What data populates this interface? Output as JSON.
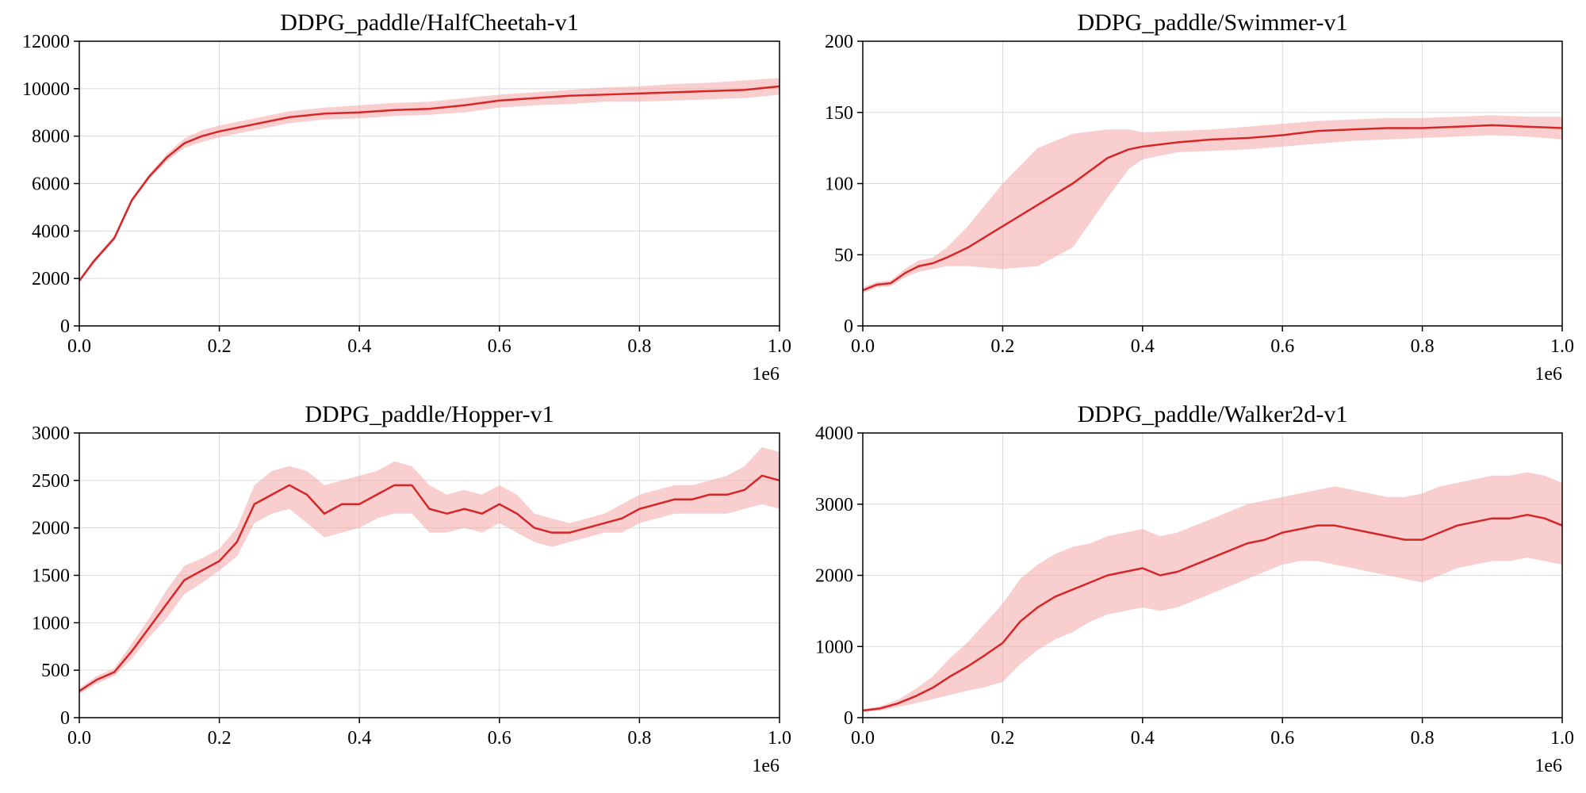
{
  "figure": {
    "colors": {
      "line": "#d62728",
      "band": "#f4a6a8",
      "grid": "#d9d9d9",
      "axis": "#000000"
    }
  },
  "chart_data": [
    {
      "type": "line",
      "title": "DDPG_paddle/HalfCheetah-v1",
      "xlim": [
        0,
        1000000
      ],
      "ylim": [
        0,
        12000
      ],
      "xticks": [
        0.0,
        0.2,
        0.4,
        0.6,
        0.8,
        1.0
      ],
      "xtick_labels": [
        "0.0",
        "0.2",
        "0.4",
        "0.6",
        "0.8",
        "1.0"
      ],
      "yticks": [
        0,
        2000,
        4000,
        6000,
        8000,
        10000,
        12000
      ],
      "ytick_labels": [
        "0",
        "2000",
        "4000",
        "6000",
        "8000",
        "10000",
        "12000"
      ],
      "x_offset_label": "1e6",
      "grid": true,
      "series": [
        {
          "x": [
            0,
            20000,
            50000,
            75000,
            100000,
            125000,
            150000,
            175000,
            200000,
            250000,
            300000,
            350000,
            400000,
            450000,
            500000,
            550000,
            600000,
            650000,
            700000,
            750000,
            800000,
            850000,
            900000,
            950000,
            1000000
          ],
          "mean": [
            1900,
            2700,
            3700,
            5300,
            6300,
            7100,
            7700,
            8000,
            8200,
            8500,
            8800,
            8950,
            9000,
            9100,
            9150,
            9300,
            9500,
            9600,
            9700,
            9750,
            9800,
            9850,
            9900,
            9950,
            10100
          ],
          "lower": [
            1850,
            2600,
            3600,
            5200,
            6200,
            6950,
            7500,
            7750,
            7950,
            8250,
            8550,
            8700,
            8750,
            8850,
            8900,
            9000,
            9200,
            9300,
            9350,
            9450,
            9450,
            9500,
            9550,
            9600,
            9750
          ],
          "upper": [
            1950,
            2800,
            3800,
            5400,
            6400,
            7250,
            7900,
            8250,
            8450,
            8750,
            9050,
            9200,
            9300,
            9400,
            9450,
            9600,
            9750,
            9850,
            9950,
            10050,
            10100,
            10200,
            10250,
            10350,
            10450
          ]
        }
      ]
    },
    {
      "type": "line",
      "title": "DDPG_paddle/Swimmer-v1",
      "xlim": [
        0,
        1000000
      ],
      "ylim": [
        0,
        200
      ],
      "xticks": [
        0.0,
        0.2,
        0.4,
        0.6,
        0.8,
        1.0
      ],
      "xtick_labels": [
        "0.0",
        "0.2",
        "0.4",
        "0.6",
        "0.8",
        "1.0"
      ],
      "yticks": [
        0,
        50,
        100,
        150,
        200
      ],
      "ytick_labels": [
        "0",
        "50",
        "100",
        "150",
        "200"
      ],
      "x_offset_label": "1e6",
      "grid": true,
      "series": [
        {
          "x": [
            0,
            20000,
            40000,
            60000,
            80000,
            100000,
            120000,
            150000,
            200000,
            250000,
            300000,
            350000,
            380000,
            400000,
            450000,
            500000,
            550000,
            600000,
            650000,
            700000,
            750000,
            800000,
            850000,
            900000,
            950000,
            1000000
          ],
          "mean": [
            25,
            29,
            30,
            37,
            42,
            44,
            48,
            55,
            70,
            85,
            100,
            118,
            124,
            126,
            129,
            131,
            132,
            134,
            137,
            138,
            139,
            139,
            140,
            141,
            140,
            139
          ],
          "lower": [
            23,
            27,
            28,
            34,
            38,
            40,
            42,
            42,
            40,
            42,
            55,
            90,
            110,
            117,
            122,
            123,
            124,
            126,
            128,
            130,
            131,
            132,
            133,
            134,
            133,
            131
          ],
          "upper": [
            27,
            31,
            32,
            40,
            46,
            48,
            55,
            70,
            100,
            125,
            135,
            138,
            138,
            136,
            137,
            138,
            140,
            142,
            144,
            145,
            146,
            146,
            147,
            148,
            147,
            147
          ]
        }
      ]
    },
    {
      "type": "line",
      "title": "DDPG_paddle/Hopper-v1",
      "xlim": [
        0,
        1000000
      ],
      "ylim": [
        0,
        3000
      ],
      "xticks": [
        0.0,
        0.2,
        0.4,
        0.6,
        0.8,
        1.0
      ],
      "xtick_labels": [
        "0.0",
        "0.2",
        "0.4",
        "0.6",
        "0.8",
        "1.0"
      ],
      "yticks": [
        0,
        500,
        1000,
        1500,
        2000,
        2500,
        3000
      ],
      "ytick_labels": [
        "0",
        "500",
        "1000",
        "1500",
        "2000",
        "2500",
        "3000"
      ],
      "x_offset_label": "1e6",
      "grid": true,
      "series": [
        {
          "x": [
            0,
            25000,
            50000,
            75000,
            100000,
            125000,
            150000,
            175000,
            200000,
            225000,
            250000,
            275000,
            300000,
            325000,
            350000,
            375000,
            400000,
            425000,
            450000,
            475000,
            500000,
            525000,
            550000,
            575000,
            600000,
            625000,
            650000,
            675000,
            700000,
            725000,
            750000,
            775000,
            800000,
            825000,
            850000,
            875000,
            900000,
            925000,
            950000,
            975000,
            1000000
          ],
          "mean": [
            280,
            400,
            480,
            700,
            950,
            1200,
            1450,
            1550,
            1650,
            1850,
            2250,
            2350,
            2450,
            2350,
            2150,
            2250,
            2250,
            2350,
            2450,
            2450,
            2200,
            2150,
            2200,
            2150,
            2250,
            2150,
            2000,
            1950,
            1950,
            2000,
            2050,
            2100,
            2200,
            2250,
            2300,
            2300,
            2350,
            2350,
            2400,
            2550,
            2500
          ],
          "lower": [
            250,
            360,
            440,
            620,
            850,
            1050,
            1300,
            1420,
            1550,
            1700,
            2050,
            2150,
            2200,
            2050,
            1900,
            1950,
            2000,
            2100,
            2150,
            2150,
            1950,
            1950,
            2000,
            1950,
            2050,
            1950,
            1850,
            1800,
            1850,
            1900,
            1950,
            1950,
            2050,
            2100,
            2150,
            2150,
            2150,
            2150,
            2200,
            2250,
            2200
          ],
          "upper": [
            310,
            440,
            520,
            780,
            1050,
            1350,
            1600,
            1680,
            1780,
            2000,
            2450,
            2600,
            2650,
            2600,
            2450,
            2500,
            2550,
            2600,
            2700,
            2650,
            2450,
            2350,
            2400,
            2350,
            2450,
            2350,
            2150,
            2100,
            2050,
            2100,
            2150,
            2250,
            2350,
            2400,
            2450,
            2450,
            2500,
            2550,
            2650,
            2850,
            2800
          ]
        }
      ]
    },
    {
      "type": "line",
      "title": "DDPG_paddle/Walker2d-v1",
      "xlim": [
        0,
        1000000
      ],
      "ylim": [
        0,
        4000
      ],
      "xticks": [
        0.0,
        0.2,
        0.4,
        0.6,
        0.8,
        1.0
      ],
      "xtick_labels": [
        "0.0",
        "0.2",
        "0.4",
        "0.6",
        "0.8",
        "1.0"
      ],
      "yticks": [
        0,
        1000,
        2000,
        3000,
        4000
      ],
      "ytick_labels": [
        "0",
        "1000",
        "2000",
        "3000",
        "4000"
      ],
      "x_offset_label": "1e6",
      "grid": true,
      "series": [
        {
          "x": [
            0,
            25000,
            50000,
            75000,
            100000,
            125000,
            150000,
            175000,
            200000,
            225000,
            250000,
            275000,
            300000,
            325000,
            350000,
            375000,
            400000,
            425000,
            450000,
            475000,
            500000,
            525000,
            550000,
            575000,
            600000,
            625000,
            650000,
            675000,
            700000,
            725000,
            750000,
            775000,
            800000,
            825000,
            850000,
            875000,
            900000,
            925000,
            950000,
            975000,
            1000000
          ],
          "mean": [
            100,
            130,
            200,
            300,
            420,
            580,
            720,
            880,
            1050,
            1350,
            1550,
            1700,
            1800,
            1900,
            2000,
            2050,
            2100,
            2000,
            2050,
            2150,
            2250,
            2350,
            2450,
            2500,
            2600,
            2650,
            2700,
            2700,
            2650,
            2600,
            2550,
            2500,
            2500,
            2600,
            2700,
            2750,
            2800,
            2800,
            2850,
            2800,
            2700
          ],
          "lower": [
            80,
            100,
            150,
            200,
            260,
            320,
            380,
            430,
            500,
            750,
            950,
            1100,
            1200,
            1350,
            1450,
            1500,
            1550,
            1500,
            1550,
            1650,
            1750,
            1850,
            1950,
            2050,
            2150,
            2200,
            2200,
            2150,
            2100,
            2050,
            2000,
            1950,
            1900,
            2000,
            2100,
            2150,
            2200,
            2200,
            2250,
            2200,
            2150
          ],
          "upper": [
            120,
            160,
            250,
            400,
            580,
            840,
            1060,
            1330,
            1600,
            1950,
            2150,
            2300,
            2400,
            2450,
            2550,
            2600,
            2650,
            2550,
            2600,
            2700,
            2800,
            2900,
            3000,
            3050,
            3100,
            3150,
            3200,
            3250,
            3200,
            3150,
            3100,
            3100,
            3150,
            3250,
            3300,
            3350,
            3400,
            3400,
            3450,
            3400,
            3300
          ]
        }
      ]
    }
  ]
}
